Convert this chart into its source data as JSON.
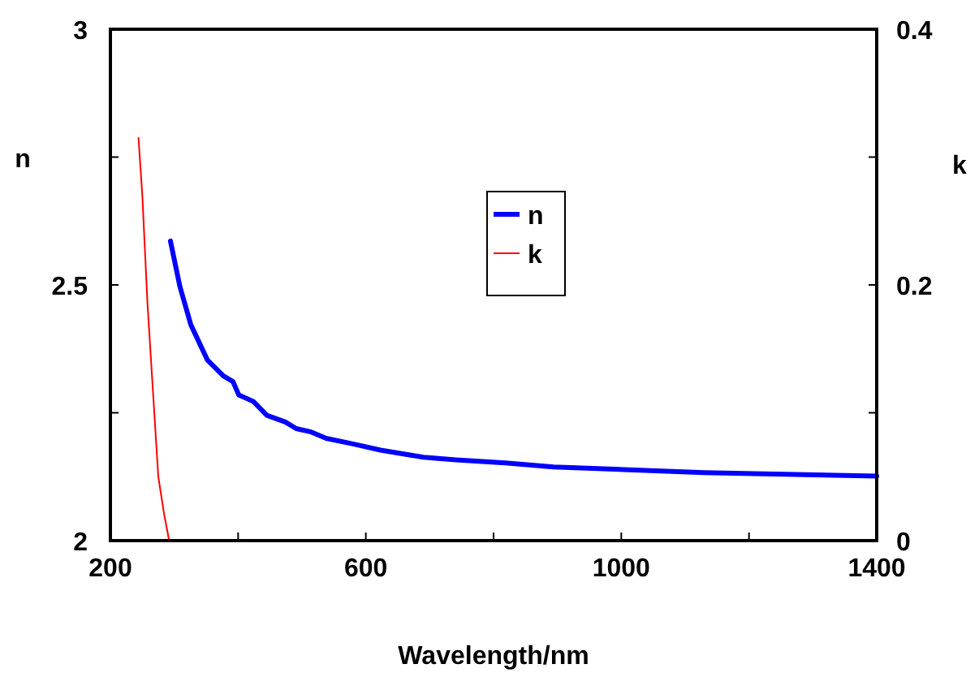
{
  "chart_data": {
    "type": "line",
    "xlabel": "Wavelength/nm",
    "ylabel": "n",
    "y2label": "k",
    "xlim": [
      200,
      1400
    ],
    "xticks": [
      200,
      {
        "value": 400,
        "label": null
      },
      600,
      {
        "value": 800,
        "label": null
      },
      1000,
      {
        "value": 1200,
        "label": null
      },
      1400
    ],
    "ylim": [
      2,
      3
    ],
    "yticks": [
      2,
      {
        "value": 2.25,
        "label": null
      },
      2.5,
      {
        "value": 2.75,
        "label": null
      },
      3
    ],
    "y2lim": [
      0,
      0.4
    ],
    "y2ticks": [
      0,
      {
        "value": 0.1,
        "label": null
      },
      0.2,
      {
        "value": 0.3,
        "label": null
      },
      0.4
    ],
    "legend": "top",
    "grid": false,
    "marker": "none",
    "line_style": "solid",
    "series": [
      {
        "name": "n",
        "color": "#0000ff",
        "x": [
          294,
          309,
          326,
          352,
          377,
          392,
          401,
          424,
          445,
          474,
          491,
          513,
          538,
          580,
          623,
          690,
          741,
          818,
          894,
          1130,
          1400
        ],
        "values": [
          2.586,
          2.496,
          2.422,
          2.353,
          2.322,
          2.311,
          2.285,
          2.272,
          2.245,
          2.232,
          2.219,
          2.213,
          2.2,
          2.189,
          2.177,
          2.163,
          2.158,
          2.152,
          2.144,
          2.133,
          2.126
        ]
      },
      {
        "name": "k",
        "color": "#ff0000",
        "axis": "y2",
        "x": [
          244,
          250,
          258,
          267,
          275,
          284,
          292
        ],
        "values": [
          0.315,
          0.27,
          0.186,
          0.114,
          0.05,
          0.021,
          0
        ]
      }
    ]
  }
}
